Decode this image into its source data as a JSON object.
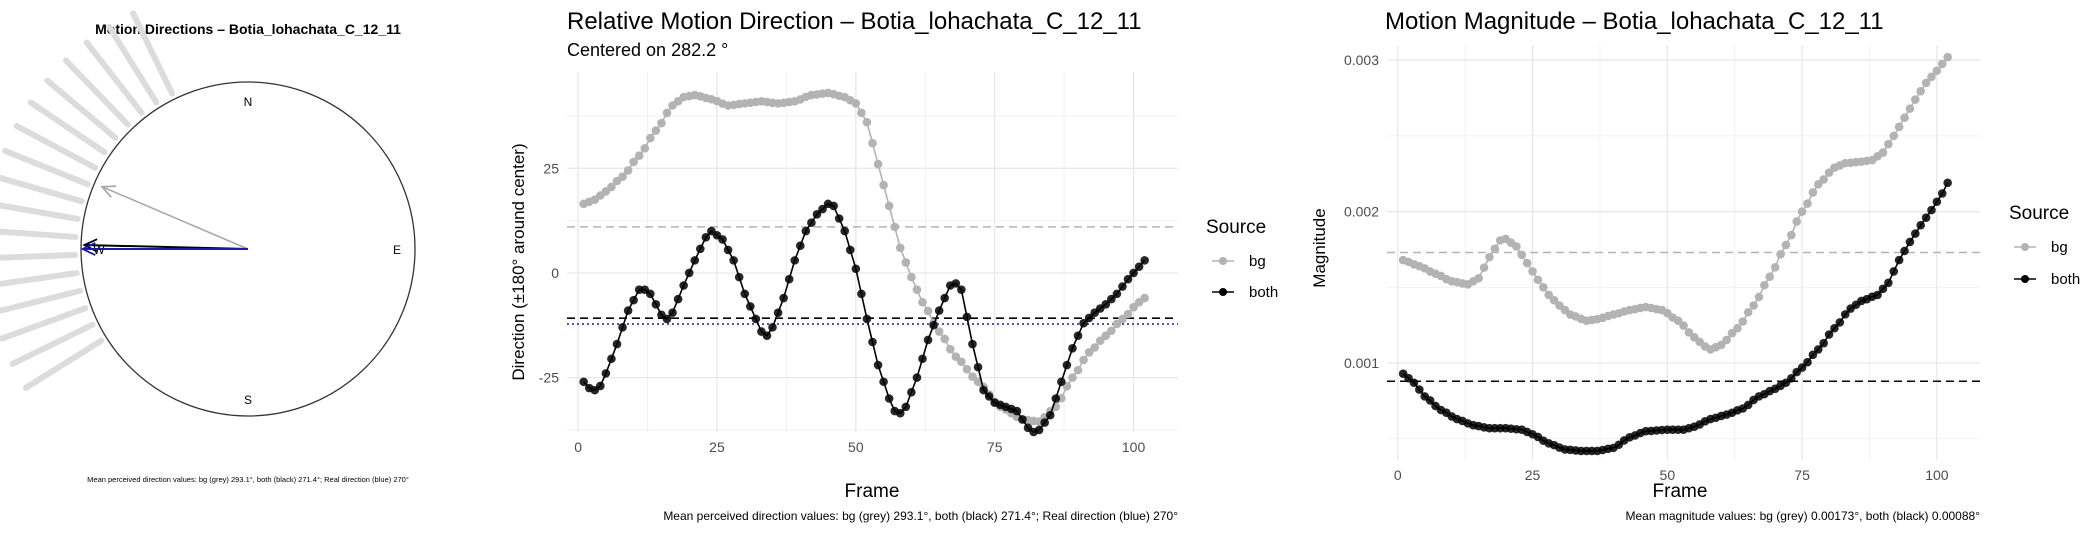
{
  "chart_data": [
    {
      "type": "compass",
      "title": "Motion Directions – Botia_lohachata_C_12_11",
      "labels": {
        "n": "N",
        "e": "E",
        "s": "S",
        "w": "W"
      },
      "arrows": [
        {
          "name": "bg",
          "color": "#aaaaaa",
          "angle_deg": 293.1,
          "length": 0.95
        },
        {
          "name": "both",
          "color": "#000000",
          "angle_deg": 271.4,
          "length": 0.98
        },
        {
          "name": "real",
          "color": "#1a1aa6",
          "angle_deg": 270,
          "length": 0.99
        }
      ],
      "fan_angles_deg": [
        292,
        298,
        304,
        310,
        316,
        322,
        328,
        334,
        286,
        280,
        274,
        268,
        262,
        256,
        250,
        244,
        238
      ],
      "caption": "Mean perceived direction values: bg (grey) 293.1°, both (black) 271.4°; Real direction (blue) 270°"
    },
    {
      "type": "line",
      "title": "Relative Motion Direction – Botia_lohachata_C_12_11",
      "subtitle": "Centered on  282.2 °",
      "xlabel": "Frame",
      "ylabel": "Direction (±180° around center)",
      "xlim": [
        -2,
        108
      ],
      "ylim": [
        -38,
        48
      ],
      "xticks": [
        0,
        25,
        50,
        75,
        100
      ],
      "yticks": [
        -25,
        0,
        25
      ],
      "legend_title": "Source",
      "series": [
        {
          "name": "bg",
          "color": "#b3b3b3",
          "knots": [
            [
              1,
              16.5
            ],
            [
              3,
              17.5
            ],
            [
              5,
              19.5
            ],
            [
              8,
              23
            ],
            [
              11,
              28
            ],
            [
              14,
              34
            ],
            [
              17,
              40
            ],
            [
              19,
              42
            ],
            [
              21,
              42.5
            ],
            [
              24,
              41.5
            ],
            [
              27,
              40
            ],
            [
              30,
              40.5
            ],
            [
              33,
              41
            ],
            [
              36,
              40.5
            ],
            [
              39,
              41
            ],
            [
              42,
              42.5
            ],
            [
              45,
              43
            ],
            [
              48,
              42
            ],
            [
              50,
              40.5
            ],
            [
              52,
              36
            ],
            [
              54,
              26
            ],
            [
              56,
              16
            ],
            [
              58,
              6
            ],
            [
              60,
              -1
            ],
            [
              62,
              -7
            ],
            [
              65,
              -14
            ],
            [
              68,
              -20
            ],
            [
              72,
              -26
            ],
            [
              76,
              -32
            ],
            [
              80,
              -35
            ],
            [
              83,
              -35.5
            ],
            [
              86,
              -32
            ],
            [
              89,
              -25
            ],
            [
              92,
              -19
            ],
            [
              95,
              -15
            ],
            [
              98,
              -11
            ],
            [
              101,
              -7
            ],
            [
              102,
              -6
            ]
          ]
        },
        {
          "name": "both",
          "color": "#000000",
          "knots": [
            [
              1,
              -26
            ],
            [
              2,
              -27.5
            ],
            [
              3,
              -28
            ],
            [
              4,
              -27
            ],
            [
              5,
              -24
            ],
            [
              7,
              -17
            ],
            [
              9,
              -9
            ],
            [
              11,
              -4
            ],
            [
              12,
              -4
            ],
            [
              13,
              -5
            ],
            [
              15,
              -10
            ],
            [
              16,
              -11
            ],
            [
              17,
              -9.5
            ],
            [
              19,
              -3
            ],
            [
              21,
              3
            ],
            [
              23,
              8.5
            ],
            [
              24,
              10
            ],
            [
              26,
              8
            ],
            [
              28,
              3
            ],
            [
              30,
              -5
            ],
            [
              32,
              -11
            ],
            [
              33,
              -14
            ],
            [
              34,
              -15
            ],
            [
              35,
              -13
            ],
            [
              37,
              -6
            ],
            [
              39,
              3
            ],
            [
              41,
              10
            ],
            [
              43,
              14
            ],
            [
              45,
              16.5
            ],
            [
              46,
              16
            ],
            [
              48,
              10
            ],
            [
              50,
              1
            ],
            [
              52,
              -11
            ],
            [
              54,
              -22
            ],
            [
              56,
              -30
            ],
            [
              57,
              -33
            ],
            [
              58,
              -33.5
            ],
            [
              59,
              -32
            ],
            [
              61,
              -25
            ],
            [
              63,
              -16
            ],
            [
              65,
              -9
            ],
            [
              67,
              -3
            ],
            [
              68,
              -2.5
            ],
            [
              69,
              -4
            ],
            [
              71,
              -17
            ],
            [
              73,
              -28
            ],
            [
              75,
              -31
            ],
            [
              77,
              -32
            ],
            [
              79,
              -33
            ],
            [
              81,
              -37
            ],
            [
              82,
              -38
            ],
            [
              83,
              -37.5
            ],
            [
              85,
              -34
            ],
            [
              87,
              -26
            ],
            [
              89,
              -18
            ],
            [
              91,
              -12
            ],
            [
              93,
              -9.5
            ],
            [
              95,
              -7.5
            ],
            [
              97,
              -5
            ],
            [
              99,
              -1.5
            ],
            [
              101,
              1.5
            ],
            [
              102,
              3
            ]
          ]
        }
      ],
      "hlines": [
        {
          "name": "bg-mean",
          "value": 11,
          "color": "#b3b3b3",
          "dash": "dashed"
        },
        {
          "name": "both-mean",
          "value": -10.8,
          "color": "#000000",
          "dash": "dashed"
        },
        {
          "name": "real-direction",
          "value": -12.2,
          "color": "#1a1aa6",
          "dash": "dotted"
        }
      ],
      "caption": "Mean perceived direction values: bg (grey) 293.1°, both (black) 271.4°; Real direction (blue) 270°"
    },
    {
      "type": "line",
      "title": "Motion Magnitude – Botia_lohachata_C_12_11",
      "xlabel": "Frame",
      "ylabel": "Magnitude",
      "xlim": [
        -2,
        108
      ],
      "ylim": [
        0.00036,
        0.0031
      ],
      "xticks": [
        0,
        25,
        50,
        75,
        100
      ],
      "yticks": [
        0.001,
        0.002,
        0.003
      ],
      "ytick_labels": [
        "0.001",
        "0.002",
        "0.003"
      ],
      "legend_title": "Source",
      "series": [
        {
          "name": "bg",
          "color": "#b3b3b3",
          "knots": [
            [
              1,
              0.00168
            ],
            [
              4,
              0.00164
            ],
            [
              7,
              0.00159
            ],
            [
              10,
              0.00154
            ],
            [
              13,
              0.00152
            ],
            [
              15,
              0.00156
            ],
            [
              17,
              0.0017
            ],
            [
              19,
              0.00181
            ],
            [
              20,
              0.00182
            ],
            [
              22,
              0.00177
            ],
            [
              24,
              0.00166
            ],
            [
              26,
              0.00155
            ],
            [
              28,
              0.00145
            ],
            [
              30,
              0.00138
            ],
            [
              32,
              0.00132
            ],
            [
              35,
              0.00128
            ],
            [
              37,
              0.00129
            ],
            [
              40,
              0.00132
            ],
            [
              43,
              0.00135
            ],
            [
              46,
              0.00137
            ],
            [
              49,
              0.00135
            ],
            [
              52,
              0.00128
            ],
            [
              55,
              0.00117
            ],
            [
              57,
              0.00111
            ],
            [
              58,
              0.00109
            ],
            [
              60,
              0.00112
            ],
            [
              63,
              0.00123
            ],
            [
              66,
              0.00138
            ],
            [
              69,
              0.00157
            ],
            [
              72,
              0.00178
            ],
            [
              75,
              0.002
            ],
            [
              78,
              0.00218
            ],
            [
              81,
              0.00229
            ],
            [
              83,
              0.00232
            ],
            [
              86,
              0.00233
            ],
            [
              88,
              0.00234
            ],
            [
              90,
              0.00239
            ],
            [
              92,
              0.0025
            ],
            [
              94,
              0.00262
            ],
            [
              96,
              0.00274
            ],
            [
              98,
              0.00285
            ],
            [
              100,
              0.00293
            ],
            [
              102,
              0.00302
            ]
          ]
        },
        {
          "name": "both",
          "color": "#000000",
          "knots": [
            [
              1,
              0.00093
            ],
            [
              3,
              0.00087
            ],
            [
              5,
              0.00078
            ],
            [
              8,
              0.00069
            ],
            [
              11,
              0.00063
            ],
            [
              14,
              0.00059
            ],
            [
              17,
              0.00057
            ],
            [
              20,
              0.00057
            ],
            [
              23,
              0.00056
            ],
            [
              25,
              0.00053
            ],
            [
              28,
              0.00047
            ],
            [
              31,
              0.00043
            ],
            [
              34,
              0.00042
            ],
            [
              37,
              0.00042
            ],
            [
              40,
              0.00044
            ],
            [
              43,
              0.00051
            ],
            [
              46,
              0.00055
            ],
            [
              50,
              0.00056
            ],
            [
              53,
              0.00056
            ],
            [
              55,
              0.00058
            ],
            [
              58,
              0.00063
            ],
            [
              61,
              0.00066
            ],
            [
              64,
              0.0007
            ],
            [
              67,
              0.00078
            ],
            [
              70,
              0.00083
            ],
            [
              72,
              0.00087
            ],
            [
              75,
              0.00097
            ],
            [
              78,
              0.00109
            ],
            [
              81,
              0.00123
            ],
            [
              84,
              0.00136
            ],
            [
              86,
              0.00141
            ],
            [
              89,
              0.00145
            ],
            [
              91,
              0.00153
            ],
            [
              93,
              0.00168
            ],
            [
              95,
              0.0018
            ],
            [
              97,
              0.00191
            ],
            [
              99,
              0.00201
            ],
            [
              101,
              0.00212
            ],
            [
              102,
              0.00219
            ]
          ]
        }
      ],
      "hlines": [
        {
          "name": "bg-mean",
          "value": 0.00173,
          "color": "#b3b3b3",
          "dash": "dashed"
        },
        {
          "name": "both-mean",
          "value": 0.00088,
          "color": "#000000",
          "dash": "dashed"
        }
      ],
      "caption": "Mean magnitude values: bg (grey) 0.00173°, both (black) 0.00088°"
    }
  ]
}
